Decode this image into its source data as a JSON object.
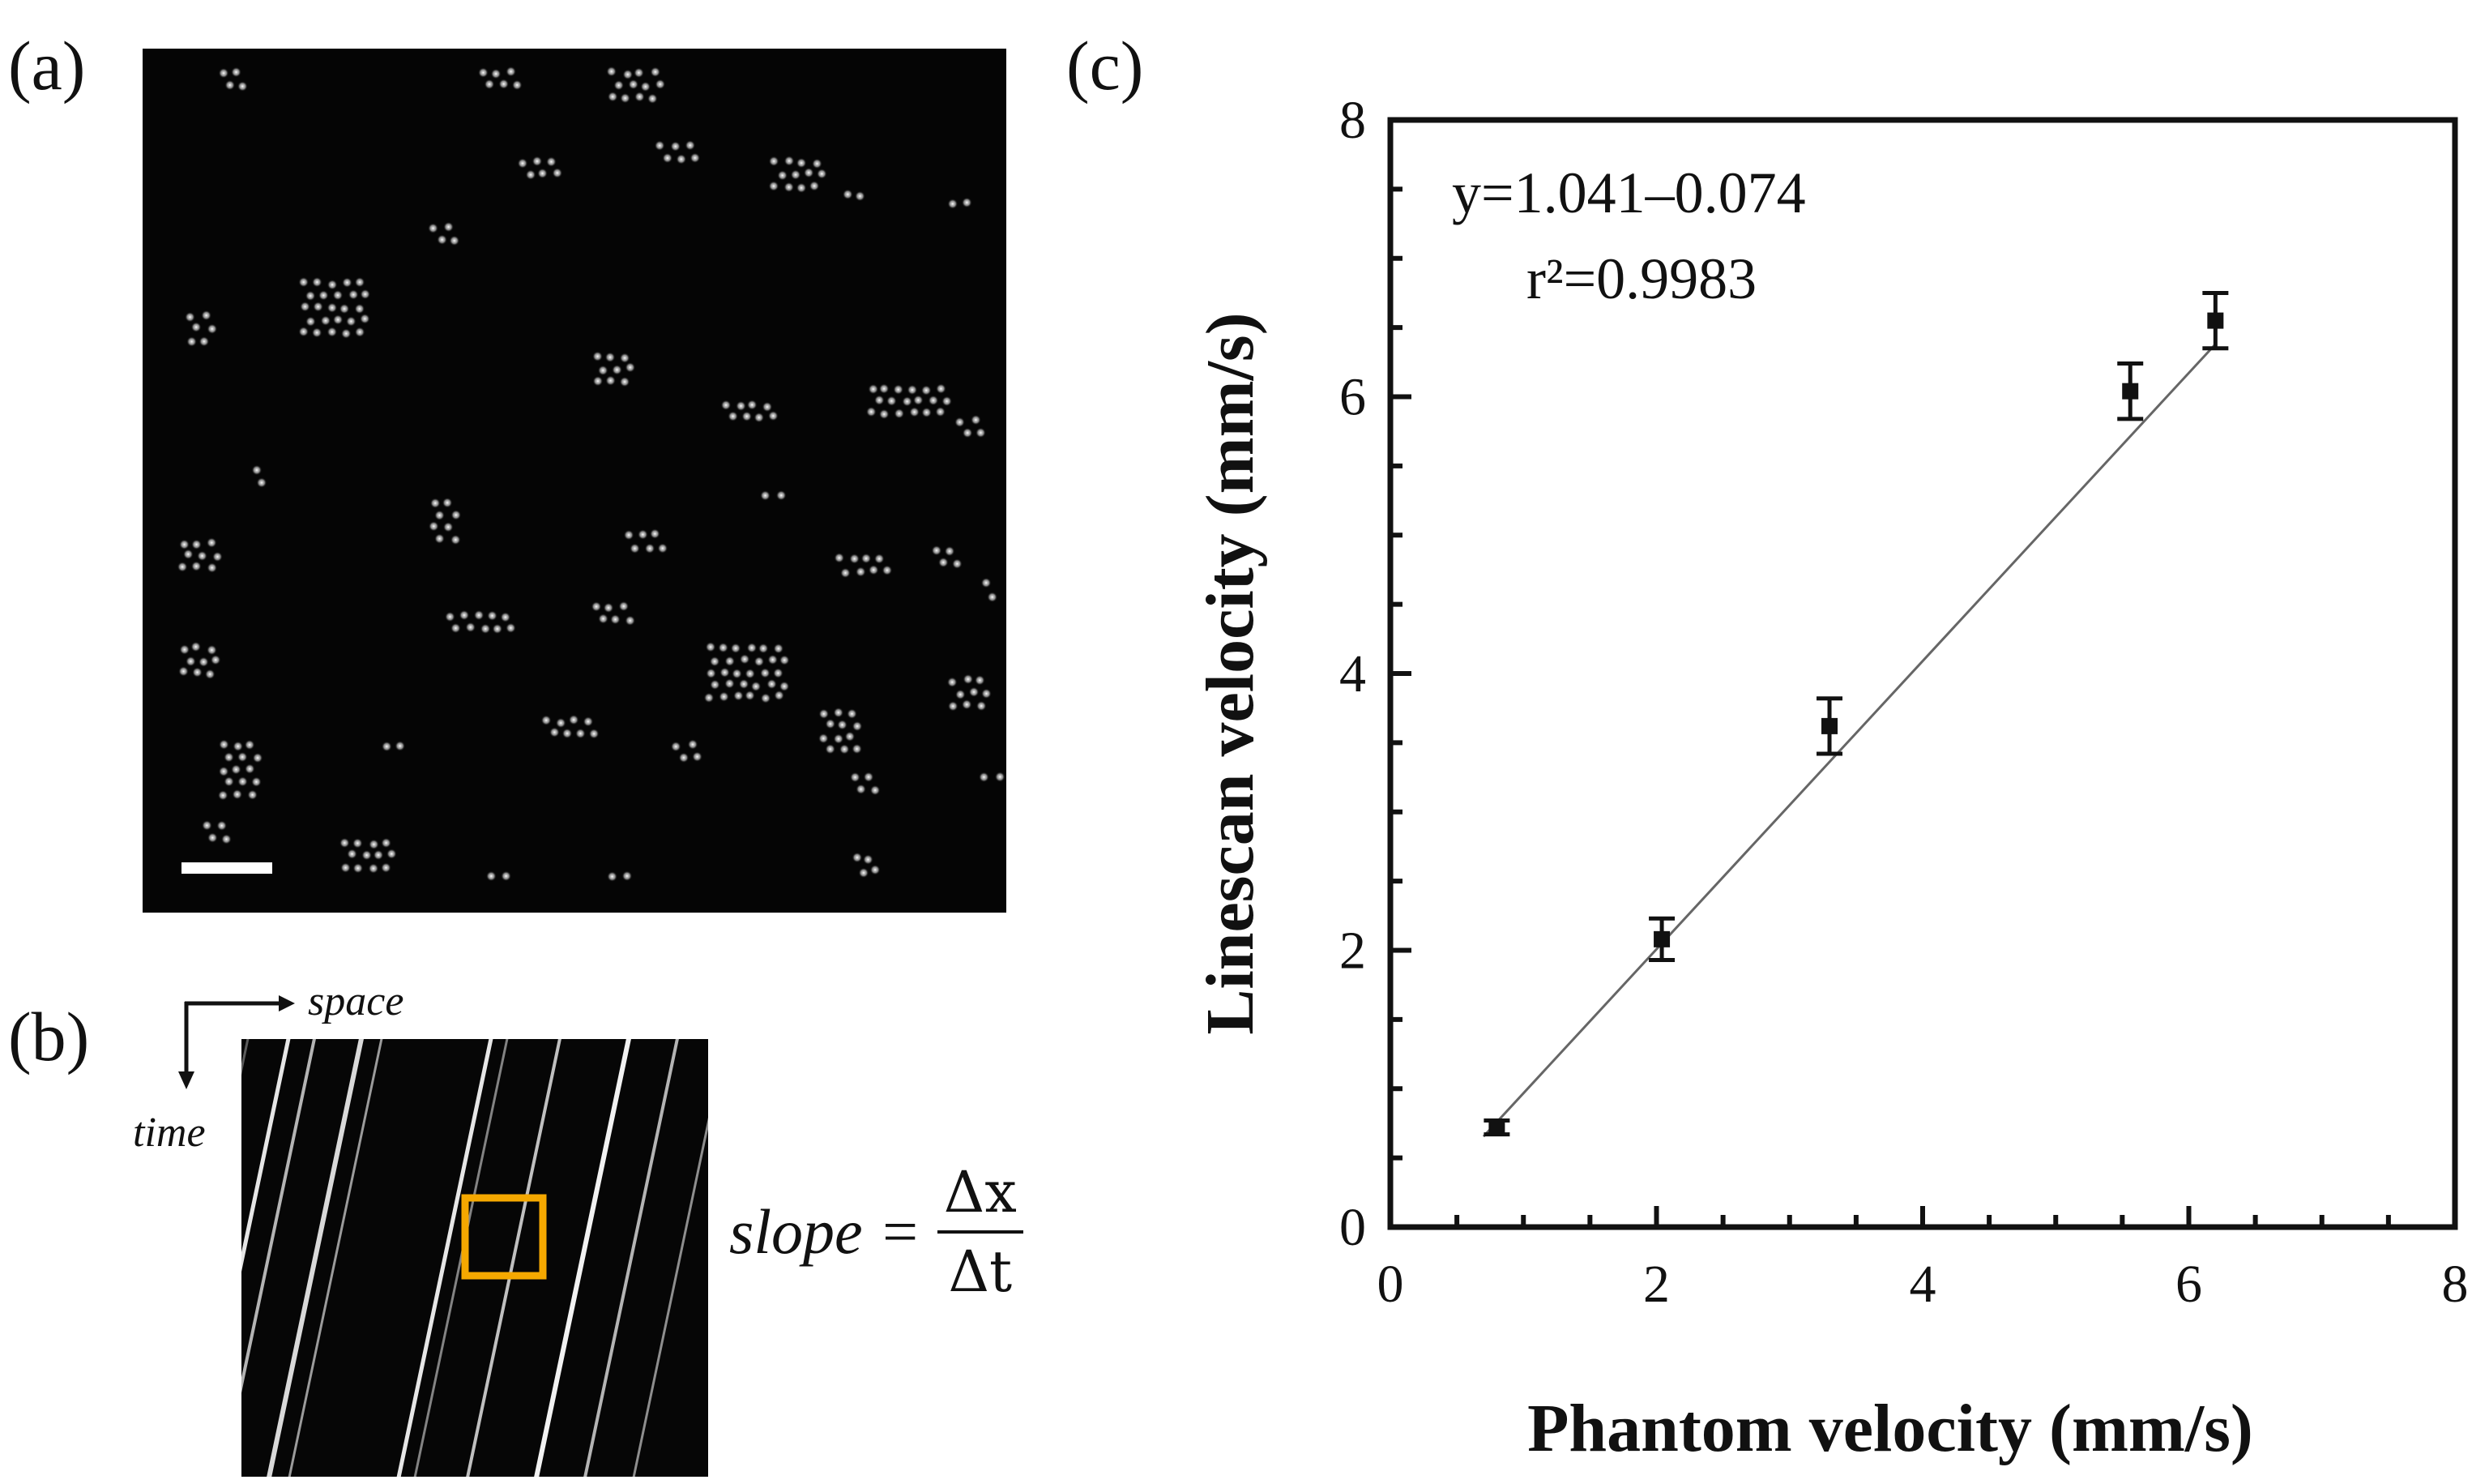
{
  "panels": {
    "a_label": "(a)",
    "b_label": "(b)",
    "c_label": "(c)"
  },
  "panel_b": {
    "space_label": "space",
    "time_label": "time",
    "slope_lhs": "slope =",
    "slope_num": "Δx",
    "slope_den": "Δt",
    "roi_color": "#F5A800"
  },
  "chart_data": {
    "type": "scatter",
    "xlabel": "Phantom velocity   (mm/s)",
    "ylabel": "Linescan velocity  (mm/s)",
    "xlim": [
      0,
      8
    ],
    "ylim": [
      0,
      8
    ],
    "xticks": [
      "0",
      "2",
      "4",
      "6",
      "8"
    ],
    "yticks": [
      "0",
      "2",
      "4",
      "6",
      "8"
    ],
    "annotation_line1": "y=1.041–0.074",
    "annotation_line2": "r²=0.9983",
    "grid": false,
    "points": [
      {
        "x": 0.8,
        "y": 0.72,
        "err": 0.05
      },
      {
        "x": 2.04,
        "y": 2.08,
        "err": 0.15
      },
      {
        "x": 3.3,
        "y": 3.62,
        "err": 0.2
      },
      {
        "x": 5.56,
        "y": 6.04,
        "err": 0.2
      },
      {
        "x": 6.2,
        "y": 6.55,
        "err": 0.2
      }
    ],
    "fit": {
      "slope": 1.041,
      "intercept": -0.074,
      "x_range": [
        0.7,
        6.2
      ]
    }
  }
}
